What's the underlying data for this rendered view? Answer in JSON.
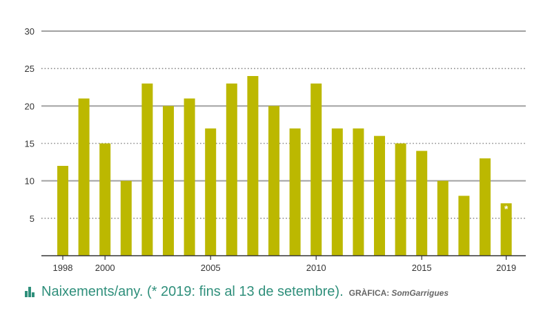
{
  "chart_data": {
    "type": "bar",
    "categories": [
      "1998",
      "1999",
      "2000",
      "2001",
      "2002",
      "2003",
      "2004",
      "2005",
      "2006",
      "2007",
      "2008",
      "2009",
      "2010",
      "2011",
      "2012",
      "2013",
      "2014",
      "2015",
      "2016",
      "2017",
      "2018",
      "2019"
    ],
    "values": [
      12,
      21,
      15,
      10,
      23,
      20,
      21,
      17,
      23,
      24,
      20,
      17,
      23,
      17,
      17,
      16,
      15,
      14,
      10,
      8,
      13,
      7
    ],
    "x_tick_labels": [
      "1998",
      "2000",
      "2005",
      "2010",
      "2015",
      "2019"
    ],
    "y_ticks": [
      5,
      10,
      15,
      20,
      25,
      30
    ],
    "ylim": [
      0,
      30
    ],
    "grid": true,
    "bar_color": "#bcb800",
    "annotation": {
      "category": "2019",
      "text": "*"
    }
  },
  "caption": {
    "text": "Naixements/any. (* 2019: fins al 13 de setembre).",
    "credit_label": "GRÀFICA:",
    "credit_brand": "SomGarrigues",
    "icon": "bar-chart-icon",
    "color": "#2f8f7b"
  }
}
